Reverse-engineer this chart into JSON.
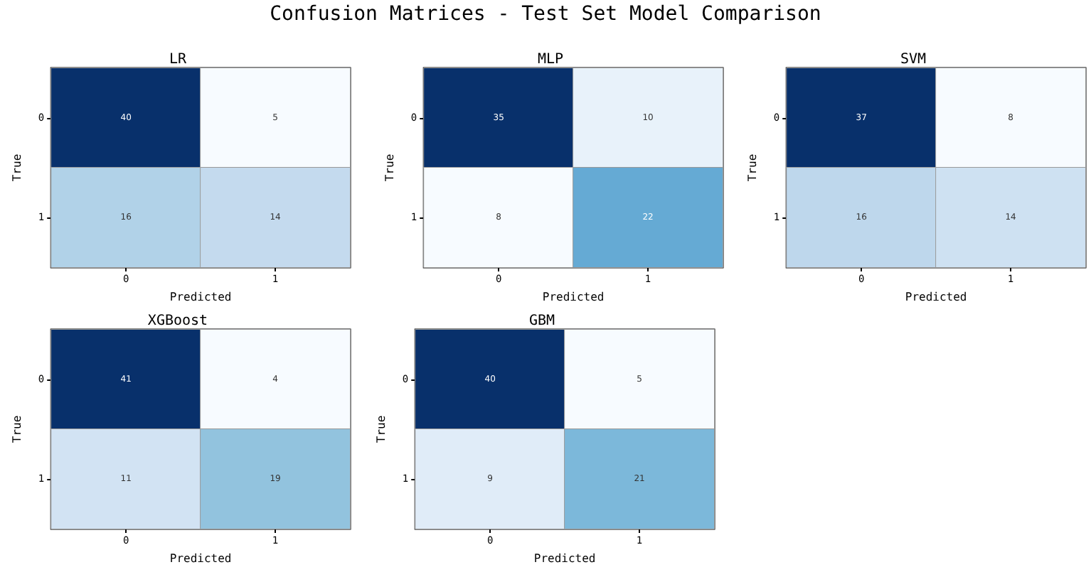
{
  "chart_data": [
    {
      "type": "heatmap",
      "title": "LR",
      "annotations": [
        "Confusion Matrices - Test Set Model Comparison"
      ],
      "xlabel": "Predicted",
      "ylabel": "True",
      "categories": [
        "0",
        "1"
      ],
      "y_categories": [
        "0",
        "1"
      ],
      "cells": [
        [
          40,
          5
        ],
        [
          16,
          14
        ]
      ],
      "data_labels": true
    },
    {
      "type": "heatmap",
      "title": "MLP",
      "xlabel": "Predicted",
      "ylabel": "True",
      "categories": [
        "0",
        "1"
      ],
      "y_categories": [
        "0",
        "1"
      ],
      "cells": [
        [
          35,
          10
        ],
        [
          8,
          22
        ]
      ],
      "data_labels": true
    },
    {
      "type": "heatmap",
      "title": "SVM",
      "xlabel": "Predicted",
      "ylabel": "True",
      "categories": [
        "0",
        "1"
      ],
      "y_categories": [
        "0",
        "1"
      ],
      "cells": [
        [
          37,
          8
        ],
        [
          16,
          14
        ]
      ],
      "data_labels": true
    },
    {
      "type": "heatmap",
      "title": "XGBoost",
      "xlabel": "Predicted",
      "ylabel": "True",
      "categories": [
        "0",
        "1"
      ],
      "y_categories": [
        "0",
        "1"
      ],
      "cells": [
        [
          41,
          4
        ],
        [
          11,
          19
        ]
      ],
      "data_labels": true
    },
    {
      "type": "heatmap",
      "title": "GBM",
      "xlabel": "Predicted",
      "ylabel": "True",
      "categories": [
        "0",
        "1"
      ],
      "y_categories": [
        "0",
        "1"
      ],
      "cells": [
        [
          40,
          5
        ],
        [
          9,
          21
        ]
      ],
      "data_labels": true
    }
  ]
}
